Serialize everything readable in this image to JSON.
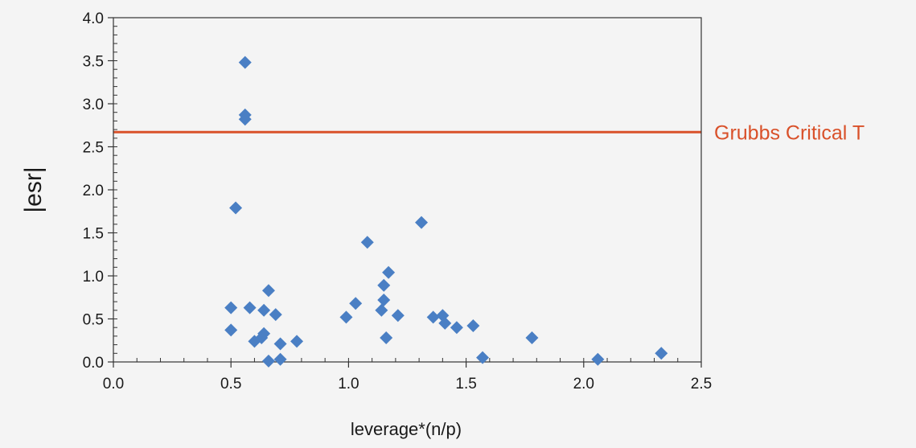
{
  "chart_data": {
    "type": "scatter",
    "title": "",
    "xlabel": "leverage*(n/p)",
    "ylabel": "|esr|",
    "xlim": [
      0,
      2.5
    ],
    "ylim": [
      0,
      4.0
    ],
    "x_ticks": [
      "0.0",
      "0.5",
      "1.0",
      "1.5",
      "2.0",
      "2.5"
    ],
    "y_ticks": [
      "0.0",
      "0.5",
      "1.0",
      "1.5",
      "2.0",
      "2.5",
      "3.0",
      "3.5",
      "4.0"
    ],
    "grid": false,
    "point_color": "#4a7fc4",
    "reference_line": {
      "y": 2.67,
      "label": "Grubbs Critical T",
      "color": "#d9512a"
    },
    "points": [
      {
        "x": 0.56,
        "y": 3.48
      },
      {
        "x": 0.56,
        "y": 2.87
      },
      {
        "x": 0.56,
        "y": 2.82
      },
      {
        "x": 0.52,
        "y": 1.79
      },
      {
        "x": 0.5,
        "y": 0.63
      },
      {
        "x": 0.5,
        "y": 0.37
      },
      {
        "x": 0.58,
        "y": 0.63
      },
      {
        "x": 0.6,
        "y": 0.24
      },
      {
        "x": 0.63,
        "y": 0.28
      },
      {
        "x": 0.64,
        "y": 0.6
      },
      {
        "x": 0.64,
        "y": 0.33
      },
      {
        "x": 0.66,
        "y": 0.83
      },
      {
        "x": 0.66,
        "y": 0.01
      },
      {
        "x": 0.69,
        "y": 0.55
      },
      {
        "x": 0.71,
        "y": 0.21
      },
      {
        "x": 0.71,
        "y": 0.03
      },
      {
        "x": 0.78,
        "y": 0.24
      },
      {
        "x": 0.99,
        "y": 0.52
      },
      {
        "x": 1.03,
        "y": 0.68
      },
      {
        "x": 1.08,
        "y": 1.39
      },
      {
        "x": 1.14,
        "y": 0.6
      },
      {
        "x": 1.15,
        "y": 0.72
      },
      {
        "x": 1.15,
        "y": 0.89
      },
      {
        "x": 1.16,
        "y": 0.28
      },
      {
        "x": 1.17,
        "y": 1.04
      },
      {
        "x": 1.21,
        "y": 0.54
      },
      {
        "x": 1.31,
        "y": 1.62
      },
      {
        "x": 1.36,
        "y": 0.52
      },
      {
        "x": 1.4,
        "y": 0.54
      },
      {
        "x": 1.41,
        "y": 0.45
      },
      {
        "x": 1.46,
        "y": 0.4
      },
      {
        "x": 1.53,
        "y": 0.42
      },
      {
        "x": 1.57,
        "y": 0.05
      },
      {
        "x": 1.78,
        "y": 0.28
      },
      {
        "x": 2.06,
        "y": 0.03
      },
      {
        "x": 2.33,
        "y": 0.1
      }
    ]
  }
}
